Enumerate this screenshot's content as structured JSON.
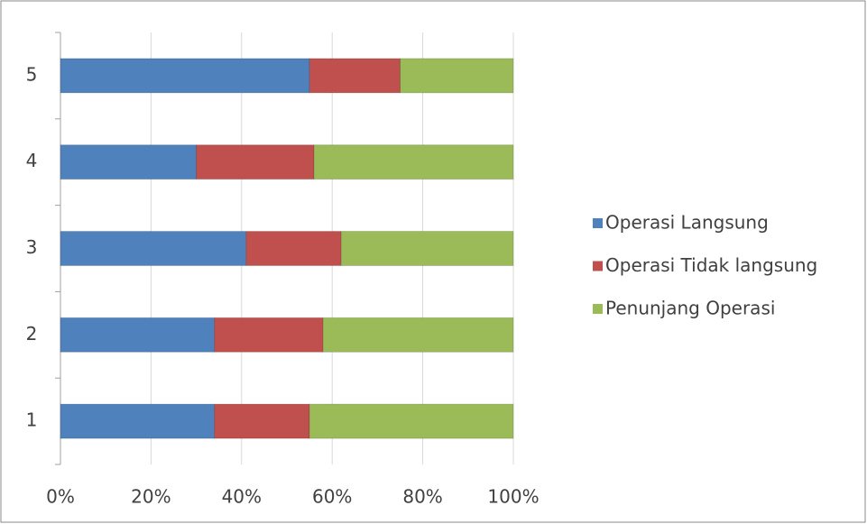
{
  "chart_data": {
    "type": "stacked-bar-horizontal-percent",
    "categories": [
      "1",
      "2",
      "3",
      "4",
      "5"
    ],
    "series": [
      {
        "name": "Operasi Langsung",
        "color": "#4f81bd",
        "values": [
          34,
          34,
          41,
          30,
          55
        ]
      },
      {
        "name": "Operasi Tidak langsung",
        "color": "#c0504d",
        "values": [
          21,
          24,
          21,
          26,
          20
        ]
      },
      {
        "name": "Penunjang Operasi",
        "color": "#9bbb59",
        "values": [
          45,
          42,
          38,
          44,
          25
        ]
      }
    ],
    "xlim": [
      0,
      100
    ],
    "xticks": [
      {
        "value": 0,
        "label": "0%"
      },
      {
        "value": 20,
        "label": "20%"
      },
      {
        "value": 40,
        "label": "40%"
      },
      {
        "value": 60,
        "label": "60%"
      },
      {
        "value": 80,
        "label": "80%"
      },
      {
        "value": 100,
        "label": "100%"
      }
    ],
    "grid": true,
    "legend": "right"
  }
}
